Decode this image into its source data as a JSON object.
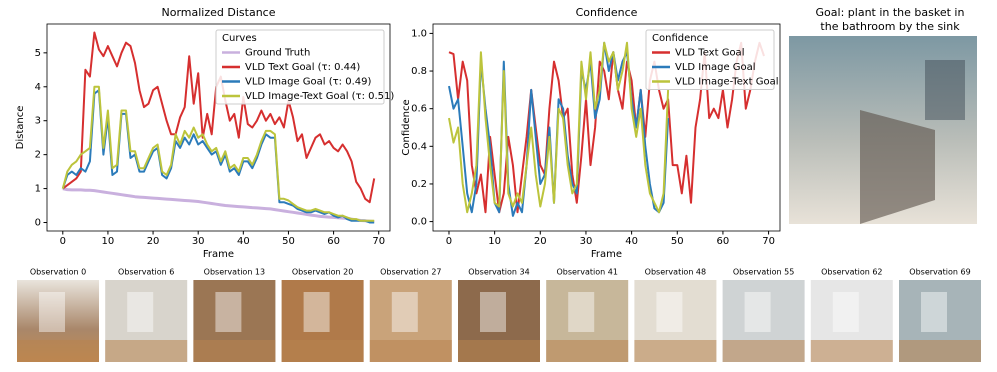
{
  "chart_data": [
    {
      "type": "line",
      "title": "Normalized Distance",
      "xlabel": "Frame",
      "ylabel": "Distance",
      "legend_title": "Curves",
      "legend": "upper right",
      "x": [
        0,
        1,
        2,
        3,
        4,
        5,
        6,
        7,
        8,
        9,
        10,
        11,
        12,
        13,
        14,
        15,
        16,
        17,
        18,
        19,
        20,
        21,
        22,
        23,
        24,
        25,
        26,
        27,
        28,
        29,
        30,
        31,
        32,
        33,
        34,
        35,
        36,
        37,
        38,
        39,
        40,
        41,
        42,
        43,
        44,
        45,
        46,
        47,
        48,
        49,
        50,
        51,
        52,
        53,
        54,
        55,
        56,
        57,
        58,
        59,
        60,
        61,
        62,
        63,
        64,
        65,
        66,
        67,
        68,
        69
      ],
      "xlim": [
        -3.5,
        72.5
      ],
      "xticks": [
        0,
        10,
        20,
        30,
        40,
        50,
        60,
        70
      ],
      "ylim": [
        -0.25,
        5.85
      ],
      "yticks": [
        0,
        1,
        2,
        3,
        4,
        5
      ],
      "series": [
        {
          "name": "Ground Truth",
          "color": "#c9b0de",
          "values": [
            1,
            0.97,
            0.96,
            0.96,
            0.96,
            0.95,
            0.95,
            0.94,
            0.92,
            0.9,
            0.88,
            0.86,
            0.84,
            0.82,
            0.8,
            0.78,
            0.76,
            0.75,
            0.74,
            0.73,
            0.72,
            0.71,
            0.7,
            0.69,
            0.68,
            0.67,
            0.66,
            0.65,
            0.64,
            0.63,
            0.62,
            0.6,
            0.58,
            0.56,
            0.54,
            0.52,
            0.5,
            0.49,
            0.48,
            0.47,
            0.46,
            0.45,
            0.44,
            0.43,
            0.42,
            0.41,
            0.4,
            0.38,
            0.36,
            0.34,
            0.32,
            0.3,
            0.28,
            0.26,
            0.24,
            0.22,
            0.2,
            0.18,
            0.17,
            0.16,
            0.15,
            0.14,
            0.13,
            0.12,
            0.1,
            0.08,
            0.06,
            0.05,
            0.04,
            0.03
          ]
        },
        {
          "name": "VLD Text Goal (τ: 0.44)",
          "color": "#d62f2f",
          "values": [
            1,
            1.1,
            1.2,
            1.3,
            1.5,
            4.5,
            4.3,
            5.6,
            5.1,
            4.9,
            5.2,
            4.9,
            4.6,
            5,
            5.3,
            5.2,
            4.7,
            3.9,
            3.4,
            3.5,
            3.9,
            4,
            3.5,
            3,
            2.6,
            2.6,
            3.1,
            3.4,
            4.9,
            3.5,
            4.4,
            2.5,
            3.2,
            2.6,
            4,
            4.3,
            3.6,
            3,
            3.2,
            2.5,
            3.7,
            2.9,
            2.8,
            3,
            3.3,
            3,
            3.2,
            2.9,
            3.1,
            2.8,
            3.6,
            3.1,
            2.4,
            2.6,
            1.9,
            2.2,
            2.5,
            2.6,
            2.3,
            2.4,
            2.2,
            2.1,
            2.3,
            2.1,
            1.8,
            1.2,
            1,
            0.7,
            0.6,
            1.3
          ]
        },
        {
          "name": "VLD Image Goal (τ: 0.49)",
          "color": "#2b7bba",
          "values": [
            1,
            1.4,
            1.5,
            1.4,
            1.6,
            1.5,
            1.8,
            3.8,
            3.9,
            2,
            3.1,
            1.4,
            1.5,
            3.2,
            3.2,
            1.9,
            2,
            1.5,
            1.5,
            1.8,
            2.1,
            2.2,
            1.4,
            1.3,
            1.6,
            2.4,
            2.2,
            2.5,
            2.3,
            2.6,
            2.3,
            2.4,
            2.2,
            2,
            2.1,
            1.7,
            2,
            1.5,
            1.6,
            1.4,
            1.8,
            1.8,
            1.6,
            1.9,
            2.3,
            2.6,
            2.5,
            2.5,
            0.6,
            0.6,
            0.55,
            0.5,
            0.4,
            0.35,
            0.3,
            0.3,
            0.35,
            0.3,
            0.25,
            0.3,
            0.2,
            0.15,
            0.2,
            0.1,
            0.05,
            0.05,
            0.05,
            0.05,
            0,
            0
          ]
        },
        {
          "name": "VLD Image-Text Goal (τ: 0.51)",
          "color": "#bcc43c",
          "values": [
            1,
            1.5,
            1.7,
            1.8,
            2,
            2.1,
            2.2,
            4,
            4,
            2.2,
            3.3,
            1.6,
            1.7,
            3.3,
            3.3,
            2.1,
            2.1,
            1.6,
            1.6,
            1.9,
            2.2,
            2.3,
            1.5,
            1.4,
            1.7,
            2.6,
            2.3,
            2.7,
            2.5,
            2.8,
            2.5,
            2.6,
            2.3,
            2.1,
            2.2,
            1.8,
            2.1,
            1.6,
            1.7,
            1.5,
            1.9,
            1.9,
            1.7,
            2,
            2.4,
            2.7,
            2.7,
            2.6,
            0.7,
            0.7,
            0.65,
            0.55,
            0.45,
            0.4,
            0.35,
            0.35,
            0.4,
            0.35,
            0.3,
            0.3,
            0.25,
            0.2,
            0.2,
            0.15,
            0.1,
            0.1,
            0.05,
            0.05,
            0.05,
            0.05
          ]
        }
      ]
    },
    {
      "type": "line",
      "title": "Confidence",
      "xlabel": "Frame",
      "ylabel": "Confidence",
      "legend_title": "Confidence",
      "legend": "upper right",
      "x": [
        0,
        1,
        2,
        3,
        4,
        5,
        6,
        7,
        8,
        9,
        10,
        11,
        12,
        13,
        14,
        15,
        16,
        17,
        18,
        19,
        20,
        21,
        22,
        23,
        24,
        25,
        26,
        27,
        28,
        29,
        30,
        31,
        32,
        33,
        34,
        35,
        36,
        37,
        38,
        39,
        40,
        41,
        42,
        43,
        44,
        45,
        46,
        47,
        48,
        49,
        50,
        51,
        52,
        53,
        54,
        55,
        56,
        57,
        58,
        59,
        60,
        61,
        62,
        63,
        64,
        65,
        66,
        67,
        68,
        69
      ],
      "xlim": [
        -3.5,
        72.5
      ],
      "xticks": [
        0,
        10,
        20,
        30,
        40,
        50,
        60,
        70
      ],
      "ylim": [
        -0.05,
        1.05
      ],
      "yticks": [
        {
          "value": 0,
          "label": "0.0"
        },
        0.2,
        0.4,
        0.6,
        0.8,
        {
          "value": 1,
          "label": "1.0"
        }
      ],
      "series": [
        {
          "name": "VLD Text Goal",
          "color": "#d62f2f",
          "values": [
            0.9,
            0.89,
            0.65,
            0.85,
            0.75,
            0.3,
            0.15,
            0.25,
            0.05,
            0.45,
            0.25,
            0.05,
            0.15,
            0.45,
            0.3,
            0.05,
            0.25,
            0.45,
            0.7,
            0.5,
            0.3,
            0.25,
            0.6,
            0.85,
            0.75,
            0.55,
            0.6,
            0.25,
            0.1,
            0.35,
            0.65,
            0.3,
            0.5,
            0.85,
            0.8,
            0.65,
            0.9,
            0.7,
            0.6,
            0.85,
            0.75,
            0.5,
            0.7,
            0.45,
            0.75,
            0.85,
            0.7,
            0.6,
            0.65,
            0.3,
            0.3,
            0.15,
            0.35,
            0.1,
            0.5,
            0.65,
            0.9,
            0.55,
            0.6,
            0.55,
            0.7,
            0.5,
            0.65,
            0.85,
            0.95,
            0.6,
            0.7,
            0.85,
            0.95,
            0.88
          ]
        },
        {
          "name": "VLD Image Goal",
          "color": "#2b7bba",
          "values": [
            0.72,
            0.6,
            0.65,
            0.4,
            0.15,
            0.05,
            0.2,
            0.85,
            0.6,
            0.4,
            0.1,
            0.05,
            0.85,
            0.2,
            0.03,
            0.1,
            0.05,
            0.3,
            0.7,
            0.45,
            0.2,
            0.25,
            0.5,
            0.1,
            0.65,
            0.6,
            0.35,
            0.2,
            0.15,
            0.8,
            0.7,
            0.85,
            0.55,
            0.65,
            0.95,
            0.8,
            0.9,
            0.75,
            0.85,
            0.9,
            0.65,
            0.5,
            0.7,
            0.4,
            0.2,
            0.07,
            0.05,
            0.1,
            0.55,
            null,
            null,
            null,
            null,
            null,
            null,
            null,
            null,
            null,
            null,
            null,
            null,
            null,
            null,
            null,
            null,
            null,
            null,
            null,
            null,
            null
          ]
        },
        {
          "name": "VLD Image-Text Goal",
          "color": "#bcc43c",
          "values": [
            0.55,
            0.42,
            0.5,
            0.2,
            0.05,
            0.15,
            0.3,
            0.9,
            0.55,
            0.3,
            0.1,
            0.08,
            0.8,
            0.15,
            0.08,
            0.15,
            0.1,
            0.3,
            0.5,
            0.25,
            0.08,
            0.2,
            0.45,
            0.1,
            0.6,
            0.55,
            0.3,
            0.15,
            0.2,
            0.85,
            0.65,
            0.9,
            0.6,
            0.7,
            0.95,
            0.85,
            0.9,
            0.7,
            0.8,
            0.95,
            0.6,
            0.45,
            0.6,
            0.3,
            0.15,
            0.1,
            0.05,
            0.15,
            0.7,
            null,
            null,
            null,
            null,
            null,
            null,
            null,
            null,
            null,
            null,
            null,
            null,
            null,
            null,
            null,
            null,
            null,
            null,
            null,
            null,
            null
          ]
        }
      ]
    }
  ],
  "goal": {
    "lines": [
      "Goal: plant in the basket in",
      "the bathroom by the sink"
    ]
  },
  "observations": [
    "Observation 0",
    "Observation 6",
    "Observation 13",
    "Observation 20",
    "Observation 27",
    "Observation 34",
    "Observation 41",
    "Observation 48",
    "Observation 55",
    "Observation 62",
    "Observation 69"
  ]
}
